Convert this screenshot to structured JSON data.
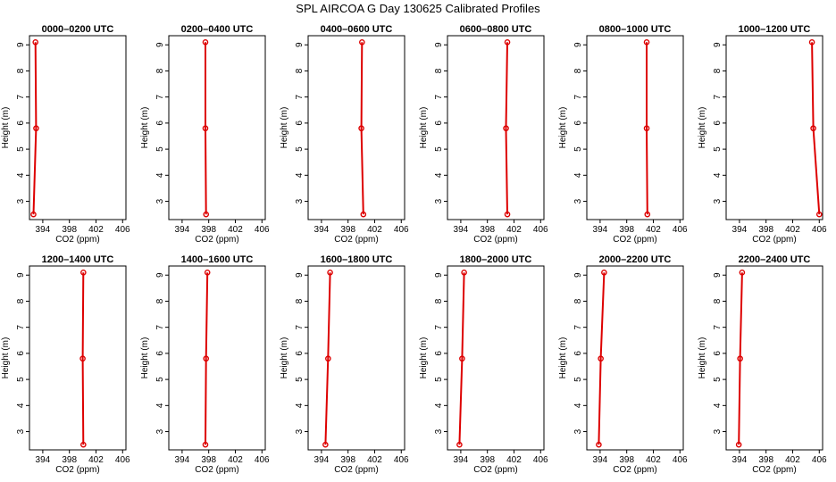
{
  "title": "SPL AIRCOA G  Day 130625  Calibrated Profiles",
  "chart_data": {
    "type": "line",
    "xlabel": "CO2 (ppm)",
    "ylabel": "Height (m)",
    "xlim": [
      392,
      406.5
    ],
    "ylim": [
      2.3,
      9.35
    ],
    "xticks": [
      394,
      398,
      402,
      406
    ],
    "yticks": [
      3,
      4,
      5,
      6,
      7,
      8,
      9
    ],
    "line_color": "#dd0000",
    "panels": [
      {
        "title": "0000–0200 UTC",
        "points": [
          {
            "x": 392.6,
            "y": 2.5
          },
          {
            "x": 393.0,
            "y": 5.8
          },
          {
            "x": 392.9,
            "y": 9.1
          }
        ]
      },
      {
        "title": "0200–0400 UTC",
        "points": [
          {
            "x": 397.6,
            "y": 2.5
          },
          {
            "x": 397.5,
            "y": 5.8
          },
          {
            "x": 397.5,
            "y": 9.1
          }
        ]
      },
      {
        "title": "0400–0600 UTC",
        "points": [
          {
            "x": 400.3,
            "y": 2.5
          },
          {
            "x": 400.0,
            "y": 5.8
          },
          {
            "x": 400.1,
            "y": 9.1
          }
        ]
      },
      {
        "title": "0600–0800 UTC",
        "points": [
          {
            "x": 401.0,
            "y": 2.5
          },
          {
            "x": 400.8,
            "y": 5.8
          },
          {
            "x": 401.0,
            "y": 9.1
          }
        ]
      },
      {
        "title": "0800–1000 UTC",
        "points": [
          {
            "x": 401.1,
            "y": 2.5
          },
          {
            "x": 401.0,
            "y": 5.8
          },
          {
            "x": 401.0,
            "y": 9.1
          }
        ]
      },
      {
        "title": "1000–1200 UTC",
        "points": [
          {
            "x": 406.0,
            "y": 2.5
          },
          {
            "x": 405.1,
            "y": 5.8
          },
          {
            "x": 404.9,
            "y": 9.1
          }
        ]
      },
      {
        "title": "1200–1400 UTC",
        "points": [
          {
            "x": 400.1,
            "y": 2.5
          },
          {
            "x": 400.0,
            "y": 5.8
          },
          {
            "x": 400.1,
            "y": 9.1
          }
        ]
      },
      {
        "title": "1400–1600 UTC",
        "points": [
          {
            "x": 397.5,
            "y": 2.5
          },
          {
            "x": 397.6,
            "y": 5.8
          },
          {
            "x": 397.8,
            "y": 9.1
          }
        ]
      },
      {
        "title": "1600–1800 UTC",
        "points": [
          {
            "x": 394.6,
            "y": 2.5
          },
          {
            "x": 395.0,
            "y": 5.8
          },
          {
            "x": 395.3,
            "y": 9.1
          }
        ]
      },
      {
        "title": "1800–2000 UTC",
        "points": [
          {
            "x": 393.8,
            "y": 2.5
          },
          {
            "x": 394.2,
            "y": 5.8
          },
          {
            "x": 394.5,
            "y": 9.1
          }
        ]
      },
      {
        "title": "2000–2200 UTC",
        "points": [
          {
            "x": 393.8,
            "y": 2.5
          },
          {
            "x": 394.1,
            "y": 5.8
          },
          {
            "x": 394.6,
            "y": 9.1
          }
        ]
      },
      {
        "title": "2200–2400 UTC",
        "points": [
          {
            "x": 393.9,
            "y": 2.5
          },
          {
            "x": 394.1,
            "y": 5.8
          },
          {
            "x": 394.4,
            "y": 9.1
          }
        ]
      }
    ]
  }
}
